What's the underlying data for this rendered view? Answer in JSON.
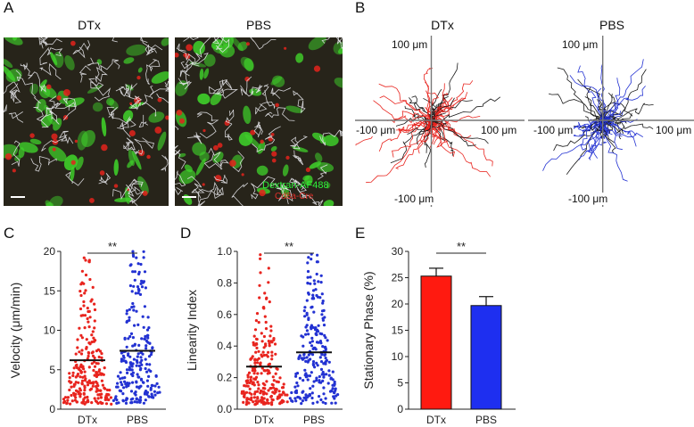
{
  "panels": {
    "A": {
      "letter": "A",
      "left_title": "DTx",
      "right_title": "PBS",
      "stain_label": "Dextran-AF488",
      "stain_label_2": "Cd8a-Cre"
    },
    "B": {
      "letter": "B",
      "left_title": "DTx",
      "right_title": "PBS",
      "axis_labels": {
        "top": "100 μm",
        "left": "-100 μm",
        "right": "100 μm",
        "bottom": "-100 μm"
      },
      "colors": {
        "DTx": "#e8241e",
        "PBS": "#2332d2",
        "other": "#1a1a1a"
      }
    },
    "C": {
      "letter": "C",
      "significance": "**"
    },
    "D": {
      "letter": "D",
      "significance": "**"
    },
    "E": {
      "letter": "E",
      "significance": "**"
    }
  },
  "chart_data": [
    {
      "id": "C",
      "type": "scatter",
      "ylabel": "Velocity (μm/min)",
      "ylim": [
        0,
        20
      ],
      "yticks": [
        "0",
        "5",
        "10",
        "15",
        "20"
      ],
      "categories": [
        "DTx",
        "PBS"
      ],
      "series": [
        {
          "name": "DTx",
          "color": "#e8241e",
          "mean": 6.2
        },
        {
          "name": "PBS",
          "color": "#2332d2",
          "mean": 7.4
        }
      ]
    },
    {
      "id": "D",
      "type": "scatter",
      "ylabel": "Linearity Index",
      "ylim": [
        0,
        1.0
      ],
      "yticks": [
        "0.0",
        "0.2",
        "0.4",
        "0.6",
        "0.8",
        "1.0"
      ],
      "categories": [
        "DTx",
        "PBS"
      ],
      "series": [
        {
          "name": "DTx",
          "color": "#e8241e",
          "mean": 0.27
        },
        {
          "name": "PBS",
          "color": "#2332d2",
          "mean": 0.36
        }
      ]
    },
    {
      "id": "E",
      "type": "bar",
      "ylabel": "Stationary Phase (%)",
      "ylim": [
        0,
        30
      ],
      "yticks": [
        "0",
        "5",
        "10",
        "15",
        "20",
        "25",
        "30"
      ],
      "categories": [
        "DTx",
        "PBS"
      ],
      "values": [
        25.3,
        19.7
      ],
      "errors": [
        1.5,
        1.7
      ],
      "colors": [
        "#ff1a10",
        "#1e2ff0"
      ]
    }
  ]
}
